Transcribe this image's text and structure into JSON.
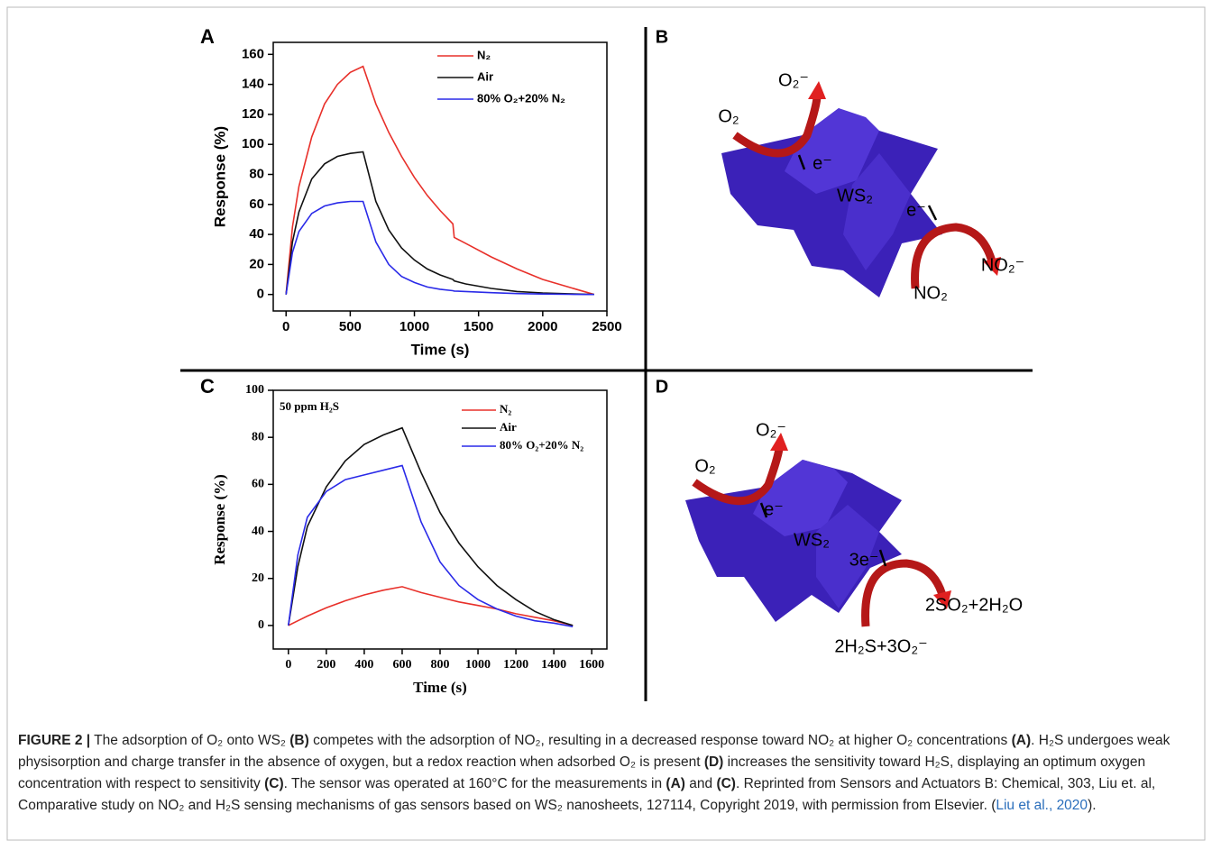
{
  "chart_data": [
    {
      "type": "line",
      "panel": "A",
      "xlabel": "Time (s)",
      "ylabel": "Response (%)",
      "x": [
        0,
        50,
        100,
        200,
        300,
        400,
        500,
        600,
        700,
        800,
        900,
        1000,
        1100,
        1200,
        1300,
        1310,
        1400,
        1600,
        1800,
        2000,
        2200,
        2400
      ],
      "series": [
        {
          "name": "N₂",
          "color": "#e8302a",
          "values": [
            0,
            45,
            72,
            105,
            127,
            140,
            148,
            152,
            127,
            108,
            92,
            78,
            66,
            56,
            47,
            38,
            34,
            25,
            17,
            10,
            5,
            0
          ]
        },
        {
          "name": "Air",
          "color": "#111111",
          "values": [
            0,
            35,
            55,
            77,
            87,
            92,
            94,
            95,
            62,
            43,
            31,
            23,
            17,
            13,
            10,
            9,
            7,
            4,
            2,
            1,
            0.5,
            0
          ]
        },
        {
          "name": "80% O₂+20% N₂",
          "color": "#2a2ae8",
          "values": [
            0,
            28,
            42,
            54,
            59,
            61,
            62,
            62,
            35,
            20,
            12,
            8,
            5,
            3.5,
            2.5,
            2.3,
            2,
            1.2,
            0.6,
            0.3,
            0.1,
            0
          ]
        }
      ],
      "xlim": [
        -100,
        2500
      ],
      "ylim": [
        -11,
        168
      ],
      "xticks": [
        0,
        500,
        1000,
        1500,
        2000,
        2500
      ],
      "yticks": [
        0,
        20,
        40,
        60,
        80,
        100,
        120,
        140,
        160
      ]
    },
    {
      "type": "line",
      "panel": "C",
      "xlabel": "Time (s)",
      "ylabel": "Response (%)",
      "annotation": "50 ppm H₂S",
      "x": [
        0,
        50,
        100,
        200,
        300,
        400,
        500,
        600,
        700,
        800,
        900,
        1000,
        1100,
        1200,
        1300,
        1400,
        1500
      ],
      "series": [
        {
          "name": "N₂",
          "color": "#e8302a",
          "values": [
            0,
            2,
            4,
            7.5,
            10.5,
            13,
            15,
            16.5,
            14,
            12,
            10,
            8.5,
            7,
            5,
            3.5,
            2,
            0
          ]
        },
        {
          "name": "Air",
          "color": "#111111",
          "values": [
            0,
            25,
            42,
            59,
            70,
            77,
            81,
            84,
            65,
            48,
            35,
            25,
            17,
            11,
            6,
            2.5,
            0
          ]
        },
        {
          "name": "80% O₂+20% N₂",
          "color": "#2a2ae8",
          "values": [
            0,
            30,
            46,
            57,
            62,
            64,
            66,
            68,
            44,
            27,
            17,
            11,
            7,
            4,
            2,
            1,
            -0.5
          ]
        }
      ],
      "xlim": [
        -80,
        1680
      ],
      "ylim": [
        -10,
        100
      ],
      "xticks": [
        0,
        200,
        400,
        600,
        800,
        1000,
        1200,
        1400,
        1600
      ],
      "yticks": [
        0,
        20,
        40,
        60,
        80,
        100
      ]
    }
  ],
  "diagrams": [
    {
      "panel": "B",
      "labels": [
        "O₂⁻",
        "O₂",
        "e⁻",
        "WS₂",
        "e⁻",
        "NO₂⁻",
        "NO₂"
      ]
    },
    {
      "panel": "D",
      "labels": [
        "O₂⁻",
        "O₂",
        "e⁻",
        "WS₂",
        "3e⁻",
        "2SO₂+2H₂O",
        "2H₂S+3O₂⁻"
      ]
    }
  ],
  "caption": {
    "label": "FIGURE 2 |",
    "runs": [
      {
        "text": " The adsorption of O₂ onto WS₂ "
      },
      {
        "text": "(B)",
        "bold": true
      },
      {
        "text": " competes with the adsorption of NO₂, resulting in a decreased response toward NO₂ at higher O₂ concentrations "
      },
      {
        "text": "(A)",
        "bold": true
      },
      {
        "text": ". H₂S undergoes weak physisorption and charge transfer in the absence of oxygen, but a redox reaction when adsorbed O₂ is present "
      },
      {
        "text": "(D)",
        "bold": true
      },
      {
        "text": " increases the sensitivity toward H₂S, displaying an optimum oxygen concentration with respect to sensitivity "
      },
      {
        "text": "(C)",
        "bold": true
      },
      {
        "text": ". The sensor was operated at 160°C for the measurements in "
      },
      {
        "text": "(A)",
        "bold": true
      },
      {
        "text": " and "
      },
      {
        "text": "(C)",
        "bold": true
      },
      {
        "text": ". Reprinted from Sensors and Actuators B: Chemical, 303, Liu et. al, Comparative study on NO₂ and H₂S sensing mechanisms of gas sensors based on WS₂ nanosheets, 127114, Copyright 2019, with permission from Elsevier. ("
      },
      {
        "text": "Liu et al., 2020",
        "link": true
      },
      {
        "text": ")."
      }
    ]
  }
}
